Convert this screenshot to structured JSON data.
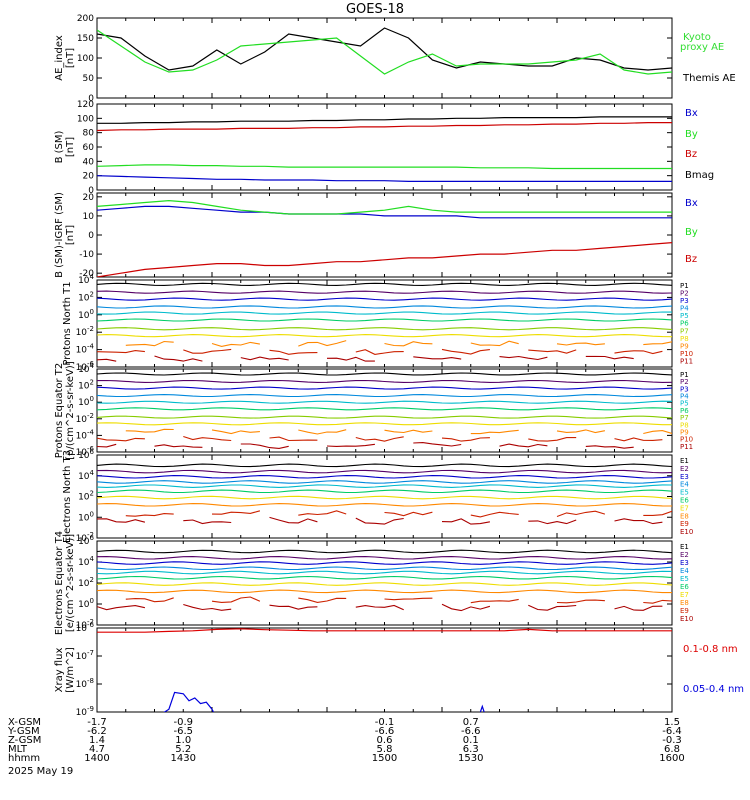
{
  "title": "GOES-18",
  "colors": {
    "black": "#000000",
    "green": "#22dd22",
    "blue": "#0000cc",
    "red": "#cc0000",
    "kyoto": "#33dd33",
    "bz_text": "#cc0000",
    "bmag_text": "#000000",
    "xray_long": "#dd0000",
    "xray_short": "#0000dd"
  },
  "x_axis": {
    "rows": [
      {
        "label": "X-GSM",
        "values": [
          "-1.7",
          "-0.9",
          "-0.1",
          "0.7",
          "1.5"
        ]
      },
      {
        "label": "Y-GSM",
        "values": [
          "-6.2",
          "-6.5",
          "-6.6",
          "-6.6",
          "-6.4"
        ]
      },
      {
        "label": "Z-GSM",
        "values": [
          "1.4",
          "1.0",
          "0.6",
          "0.1",
          "-0.3"
        ]
      },
      {
        "label": "MLT",
        "values": [
          "4.7",
          "5.2",
          "5.8",
          "6.3",
          "6.8"
        ]
      },
      {
        "label": "hhmm",
        "values": [
          "1400",
          "1430",
          "1500",
          "1530",
          "1600"
        ]
      }
    ],
    "date": "2025 May 19"
  },
  "chart_data": [
    {
      "type": "line",
      "ylabel": "AE_index [nT]",
      "yticks": [
        "0",
        "50",
        "100",
        "150",
        "200"
      ],
      "ylim": [
        0,
        200
      ],
      "x": [
        1400,
        1405,
        1410,
        1415,
        1420,
        1425,
        1430,
        1435,
        1440,
        1445,
        1450,
        1455,
        1500,
        1505,
        1510,
        1515,
        1520,
        1525,
        1530,
        1535,
        1540,
        1545,
        1550,
        1555,
        1600
      ],
      "series": [
        {
          "name": "Themis AE",
          "color": "#000000",
          "values": [
            160,
            150,
            105,
            70,
            80,
            120,
            85,
            115,
            160,
            150,
            140,
            130,
            175,
            150,
            95,
            75,
            90,
            85,
            80,
            80,
            100,
            95,
            75,
            70,
            75
          ]
        },
        {
          "name": "Kyoto proxy AE",
          "color": "#22dd22",
          "values": [
            170,
            130,
            90,
            65,
            70,
            95,
            130,
            135,
            140,
            145,
            150,
            105,
            60,
            90,
            110,
            80,
            85,
            85,
            85,
            90,
            95,
            110,
            70,
            60,
            65
          ]
        }
      ],
      "legend": [
        "Kyoto",
        "proxy AE",
        "Themis AE"
      ]
    },
    {
      "type": "line",
      "ylabel": "B (SM) [nT]",
      "yticks": [
        "0",
        "20",
        "40",
        "60",
        "80",
        "100",
        "120"
      ],
      "ylim": [
        0,
        120
      ],
      "series": [
        {
          "name": "Bx",
          "color": "#0000cc",
          "values": [
            20,
            19,
            18,
            17,
            16,
            15,
            15,
            14,
            14,
            14,
            13,
            13,
            13,
            12,
            12,
            12,
            12,
            12,
            12,
            12,
            12,
            12,
            12,
            12,
            12
          ]
        },
        {
          "name": "By",
          "color": "#22dd22",
          "values": [
            33,
            34,
            35,
            35,
            34,
            34,
            33,
            33,
            32,
            32,
            32,
            32,
            32,
            32,
            32,
            32,
            31,
            31,
            31,
            30,
            30,
            30,
            30,
            30,
            30
          ]
        },
        {
          "name": "Bz",
          "color": "#cc0000",
          "values": [
            83,
            84,
            84,
            85,
            85,
            85,
            86,
            86,
            86,
            87,
            87,
            88,
            88,
            89,
            89,
            90,
            90,
            91,
            91,
            92,
            92,
            93,
            93,
            94,
            94
          ]
        },
        {
          "name": "Bmag",
          "color": "#000000",
          "values": [
            93,
            93,
            94,
            94,
            95,
            95,
            96,
            96,
            96,
            97,
            97,
            98,
            98,
            99,
            99,
            100,
            100,
            101,
            101,
            101,
            101,
            102,
            102,
            102,
            102
          ]
        }
      ],
      "legend": [
        "Bx",
        "By",
        "Bz",
        "Bmag"
      ]
    },
    {
      "type": "line",
      "ylabel": "B (SM)-IGRF (SM) [nT]",
      "yticks": [
        "-20",
        "-10",
        "0",
        "10",
        "20"
      ],
      "ylim": [
        -22,
        22
      ],
      "series": [
        {
          "name": "Bx",
          "color": "#0000cc",
          "values": [
            13,
            14,
            15,
            15,
            14,
            13,
            12,
            12,
            11,
            11,
            11,
            11,
            10,
            10,
            10,
            10,
            9,
            9,
            9,
            9,
            9,
            9,
            9,
            9,
            9
          ]
        },
        {
          "name": "By",
          "color": "#22dd22",
          "values": [
            15,
            16,
            17,
            18,
            17,
            15,
            13,
            12,
            11,
            11,
            11,
            12,
            13,
            15,
            13,
            12,
            12,
            12,
            12,
            12,
            12,
            12,
            12,
            12,
            12
          ]
        },
        {
          "name": "Bz",
          "color": "#cc0000",
          "values": [
            -22,
            -20,
            -18,
            -17,
            -16,
            -15,
            -15,
            -16,
            -16,
            -15,
            -14,
            -14,
            -13,
            -12,
            -12,
            -11,
            -10,
            -10,
            -9,
            -8,
            -8,
            -7,
            -6,
            -5,
            -4
          ]
        }
      ],
      "legend": [
        "Bx",
        "By",
        "Bz"
      ]
    },
    {
      "type": "line",
      "ylabel": "Protons North T1",
      "yscale": "log",
      "yticks": [
        "10^4",
        "10^2",
        "10^0",
        "10^-2",
        "10^-4",
        "10^-6"
      ],
      "ylim": [
        -6,
        4
      ],
      "channels": [
        {
          "name": "P1",
          "color": "#000000",
          "level": 3.5
        },
        {
          "name": "P2",
          "color": "#550066",
          "level": 2.6
        },
        {
          "name": "P3",
          "color": "#0000cc",
          "level": 1.8
        },
        {
          "name": "P4",
          "color": "#0088dd",
          "level": 0.9
        },
        {
          "name": "P5",
          "color": "#00bbcc",
          "level": 0.2
        },
        {
          "name": "P6",
          "color": "#00cc66",
          "level": -0.6
        },
        {
          "name": "P7",
          "color": "#88cc00",
          "level": -1.6
        },
        {
          "name": "P8",
          "color": "#eedd00",
          "level": -2.4
        },
        {
          "name": "P9",
          "color": "#ff8800",
          "level": -3.3
        },
        {
          "name": "P10",
          "color": "#cc2200",
          "level": -4.2
        },
        {
          "name": "P11",
          "color": "#aa0000",
          "level": -5.0
        }
      ]
    },
    {
      "type": "line",
      "ylabel": "Protons Equator T2 [p/(cm^2-s-sr-keV)]",
      "yscale": "log",
      "yticks": [
        "10^4",
        "10^2",
        "10^0",
        "10^-2",
        "10^-4",
        "10^-6"
      ],
      "ylim": [
        -6,
        4
      ],
      "channels": [
        {
          "name": "P1",
          "color": "#000000",
          "level": 3.4
        },
        {
          "name": "P2",
          "color": "#550066",
          "level": 2.5
        },
        {
          "name": "P3",
          "color": "#0000cc",
          "level": 1.7
        },
        {
          "name": "P4",
          "color": "#0088dd",
          "level": 0.8
        },
        {
          "name": "P5",
          "color": "#00bbcc",
          "level": 0.0
        },
        {
          "name": "P6",
          "color": "#00cc66",
          "level": -0.8
        },
        {
          "name": "P7",
          "color": "#88cc00",
          "level": -1.8
        },
        {
          "name": "P8",
          "color": "#eedd00",
          "level": -2.6
        },
        {
          "name": "P9",
          "color": "#ff8800",
          "level": -3.5
        },
        {
          "name": "P10",
          "color": "#cc2200",
          "level": -4.4
        },
        {
          "name": "P11",
          "color": "#aa0000",
          "level": -5.2
        }
      ]
    },
    {
      "type": "line",
      "ylabel": "Electrons North T3",
      "yscale": "log",
      "yticks": [
        "10^6",
        "10^4",
        "10^2",
        "10^0",
        "10^-2"
      ],
      "ylim": [
        -2,
        6
      ],
      "channels": [
        {
          "name": "E1",
          "color": "#000000",
          "level": 5.0
        },
        {
          "name": "E2",
          "color": "#550066",
          "level": 4.4
        },
        {
          "name": "E3",
          "color": "#0000cc",
          "level": 3.9
        },
        {
          "name": "E4",
          "color": "#0088dd",
          "level": 3.4
        },
        {
          "name": "E5",
          "color": "#00bbcc",
          "level": 3.0
        },
        {
          "name": "E6",
          "color": "#00cc66",
          "level": 2.5
        },
        {
          "name": "E7",
          "color": "#eedd00",
          "level": 1.9
        },
        {
          "name": "E8",
          "color": "#ff8800",
          "level": 1.2
        },
        {
          "name": "E9",
          "color": "#cc2200",
          "level": 0.4
        },
        {
          "name": "E10",
          "color": "#aa0000",
          "level": -0.3
        }
      ]
    },
    {
      "type": "line",
      "ylabel": "Electrons Equator T4 [e/(cm^2-s-sr-keV)]",
      "yscale": "log",
      "yticks": [
        "10^6",
        "10^4",
        "10^2",
        "10^0",
        "10^-2"
      ],
      "ylim": [
        -2,
        6
      ],
      "channels": [
        {
          "name": "E1",
          "color": "#000000",
          "level": 5.0
        },
        {
          "name": "E2",
          "color": "#550066",
          "level": 4.4
        },
        {
          "name": "E3",
          "color": "#0000cc",
          "level": 3.9
        },
        {
          "name": "E4",
          "color": "#0088dd",
          "level": 3.4
        },
        {
          "name": "E5",
          "color": "#00bbcc",
          "level": 3.0
        },
        {
          "name": "E6",
          "color": "#00cc66",
          "level": 2.5
        },
        {
          "name": "E7",
          "color": "#eedd00",
          "level": 1.9
        },
        {
          "name": "E8",
          "color": "#ff8800",
          "level": 1.2
        },
        {
          "name": "E9",
          "color": "#cc2200",
          "level": 0.4
        },
        {
          "name": "E10",
          "color": "#aa0000",
          "level": -0.3
        }
      ]
    },
    {
      "type": "line",
      "ylabel": "Xray flux [W/m^2]",
      "yscale": "log",
      "yticks": [
        "10^-6",
        "10^-7",
        "10^-8",
        "10^-9"
      ],
      "ylim": [
        -9,
        -6
      ],
      "x": [
        1400,
        1405,
        1410,
        1415,
        1420,
        1425,
        1430,
        1435,
        1440,
        1445,
        1450,
        1455,
        1500,
        1505,
        1510,
        1515,
        1520,
        1525,
        1530,
        1535,
        1540,
        1545,
        1550,
        1555,
        1600
      ],
      "series": [
        {
          "name": "0.1-0.8 nm",
          "color": "#dd0000",
          "values": [
            -6.15,
            -6.15,
            -6.15,
            -6.12,
            -6.1,
            -6.05,
            -6.03,
            -6.06,
            -6.08,
            -6.1,
            -6.1,
            -6.1,
            -6.1,
            -6.1,
            -6.1,
            -6.1,
            -6.1,
            -6.1,
            -6.05,
            -6.1,
            -6.1,
            -6.1,
            -6.1,
            -6.1,
            -6.1
          ]
        },
        {
          "name": "0.05-0.4 nm",
          "color": "#0000dd",
          "points": [
            [
              1422,
              -9.1
            ],
            [
              1425,
              -8.9
            ],
            [
              1427,
              -8.3
            ],
            [
              1430,
              -8.35
            ],
            [
              1432,
              -8.6
            ],
            [
              1434,
              -8.5
            ],
            [
              1436,
              -8.7
            ],
            [
              1438,
              -8.65
            ],
            [
              1440,
              -8.9
            ],
            [
              1441,
              -9.1
            ],
            [
              1533,
              -9.1
            ],
            [
              1534,
              -8.8
            ],
            [
              1535,
              -9.1
            ]
          ]
        }
      ],
      "legend": [
        "0.1-0.8 nm",
        "0.05-0.4 nm"
      ]
    }
  ]
}
